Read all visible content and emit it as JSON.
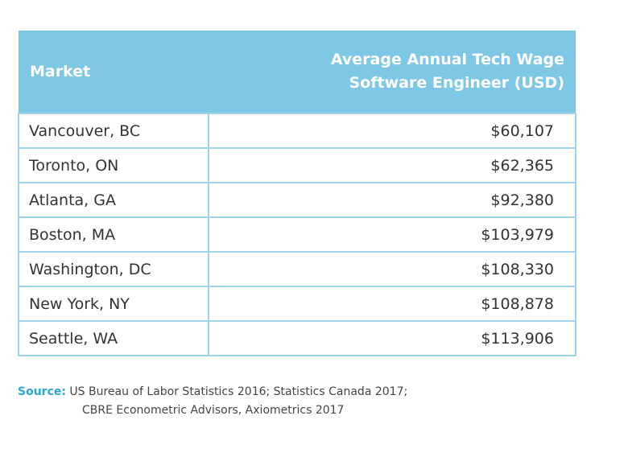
{
  "chart_data": {
    "type": "table",
    "columns": [
      "Market",
      "Average Annual Tech Wage",
      "Software Engineer (USD)"
    ],
    "rows": [
      {
        "market": "Vancouver, BC",
        "wage": "$60,107"
      },
      {
        "market": "Toronto, ON",
        "wage": "$62,365"
      },
      {
        "market": "Atlanta, GA",
        "wage": "$92,380"
      },
      {
        "market": "Boston, MA",
        "wage": "$103,979"
      },
      {
        "market": "Washington, DC",
        "wage": "$108,330"
      },
      {
        "market": "New York, NY",
        "wage": "$108,878"
      },
      {
        "market": "Seattle, WA",
        "wage": "$113,906"
      }
    ],
    "header_color": "#7ec8e6"
  },
  "source": {
    "label": "Source:",
    "line1": "US Bureau of Labor Statistics 2016; Statistics Canada 2017;",
    "line2": "CBRE Econometric Advisors, Axiometrics 2017"
  }
}
